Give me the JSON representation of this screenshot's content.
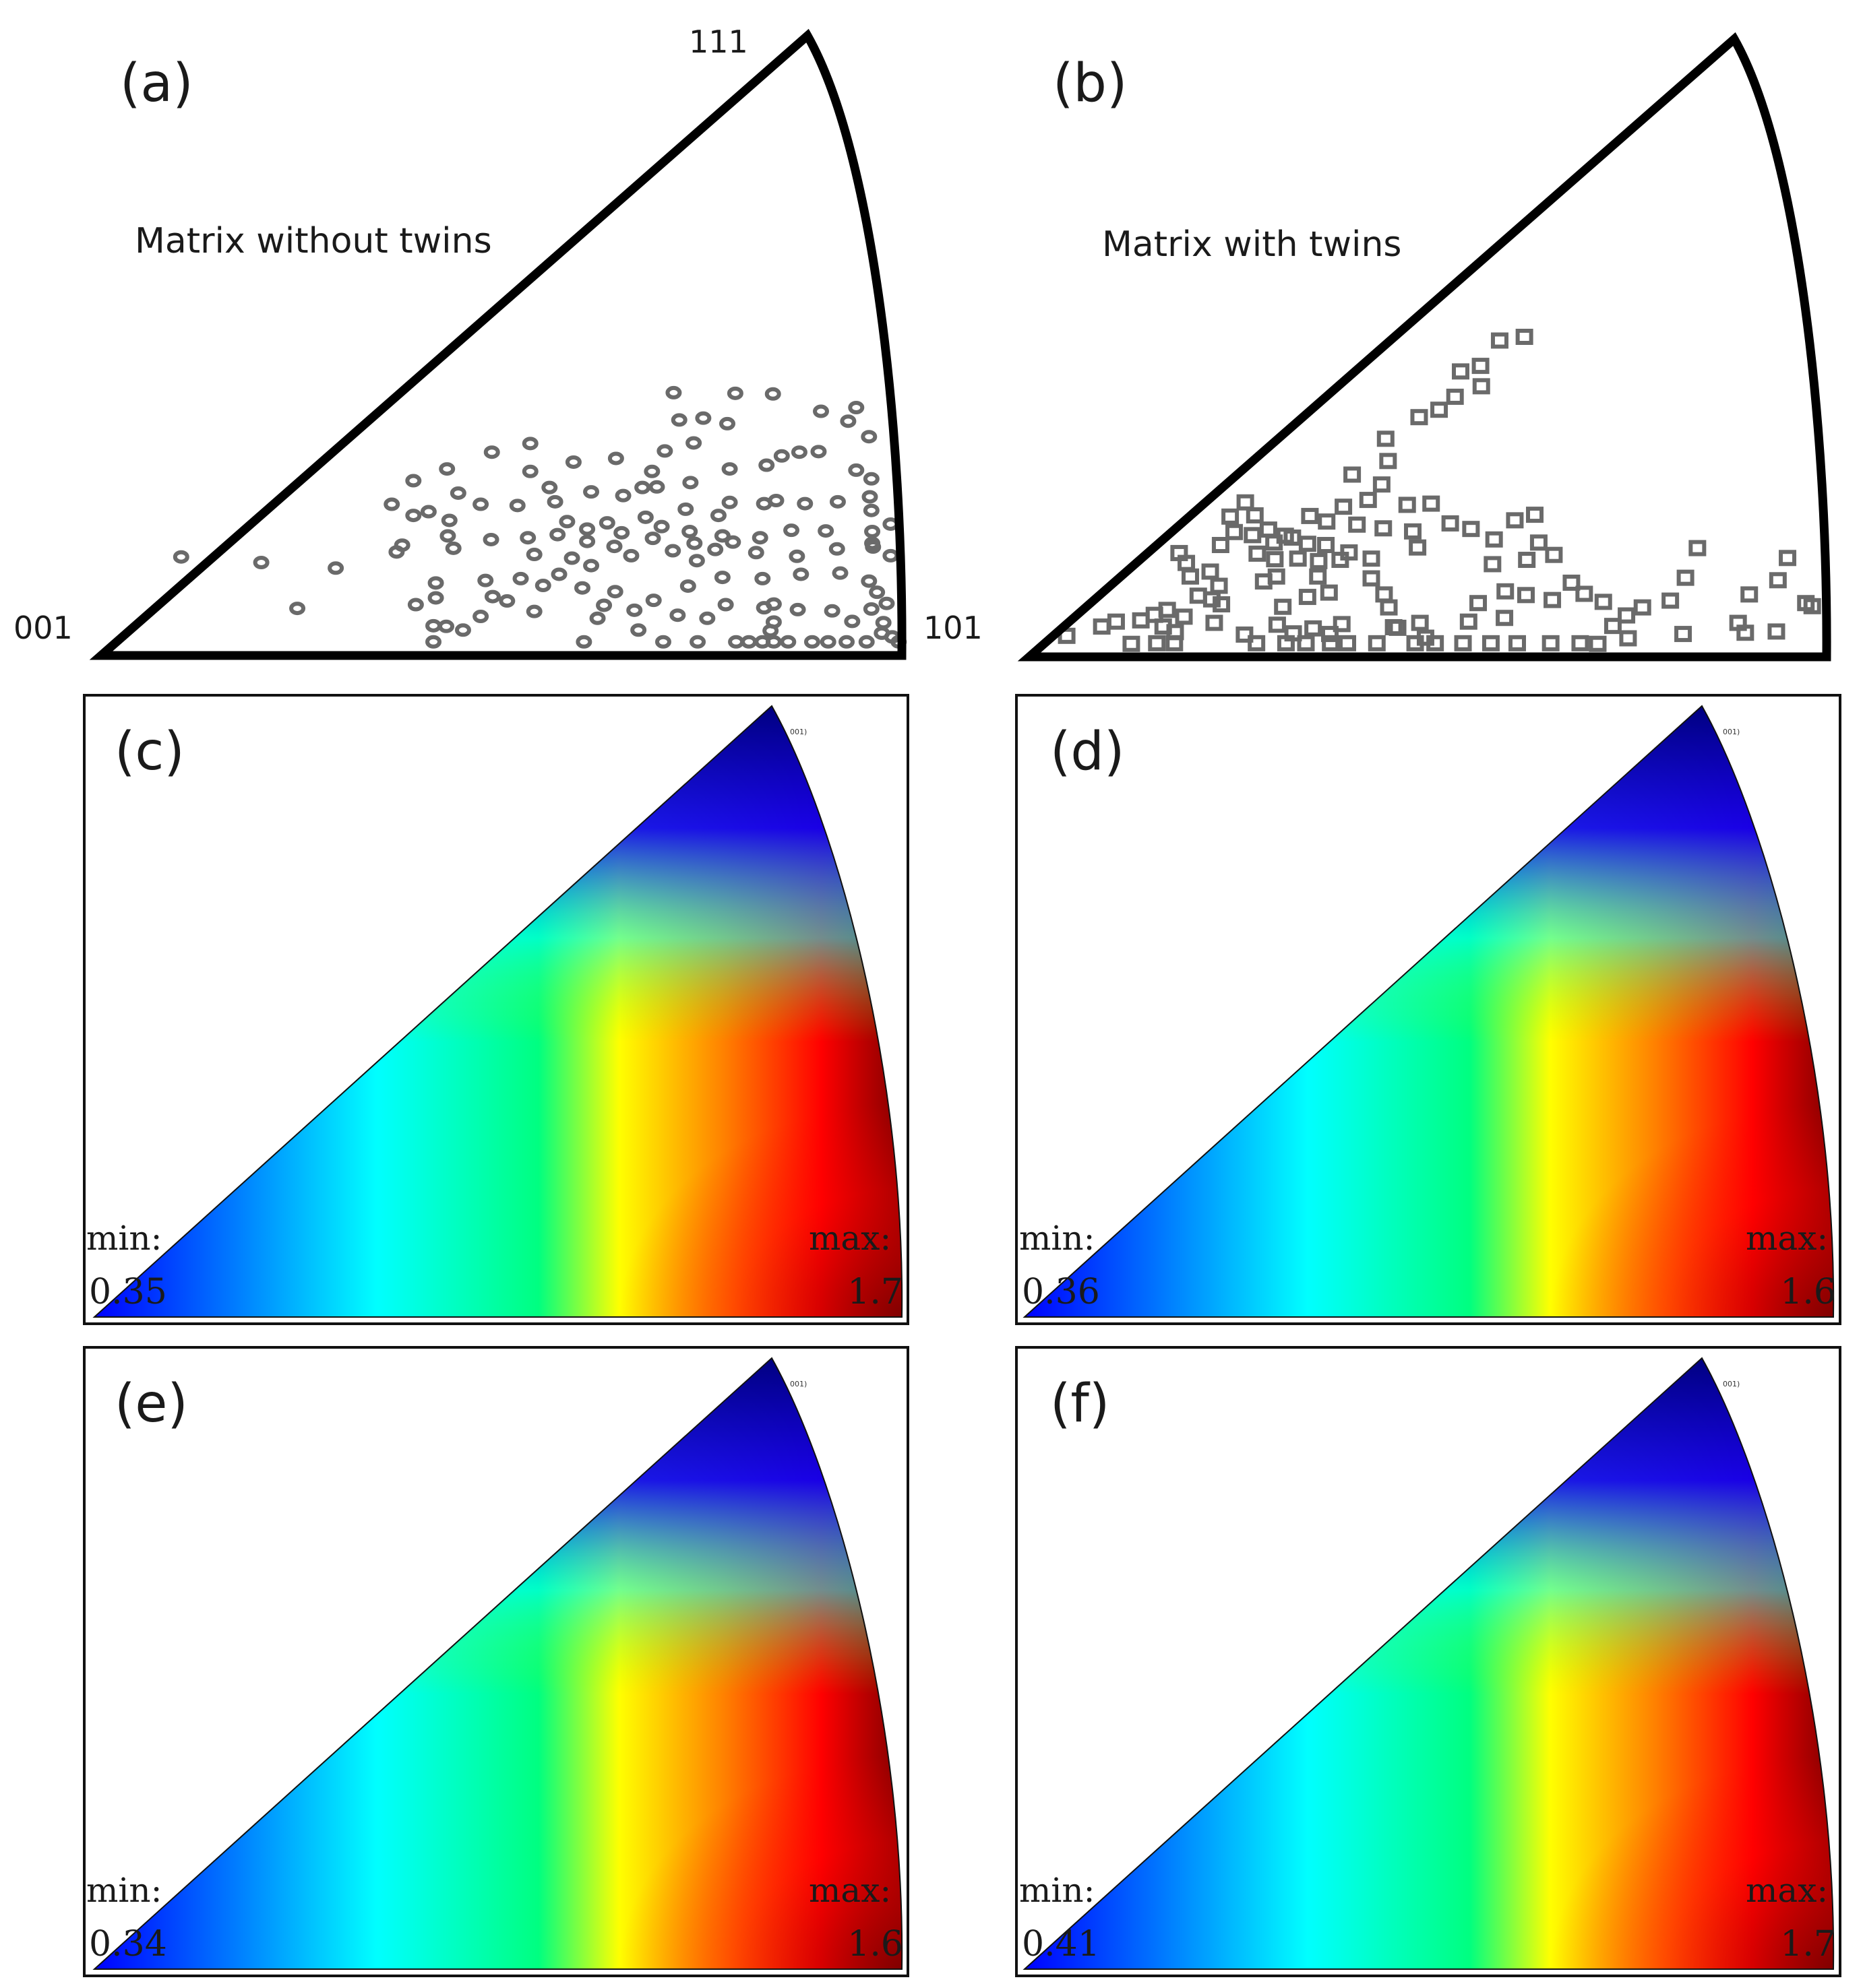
{
  "chart_data": [
    {
      "panel": "(a)",
      "type": "scatter",
      "title": "Matrix without twins",
      "vertices": [
        "001",
        "111",
        "101"
      ],
      "marker": "circle",
      "points": [
        [
          0.84,
          0.054
        ],
        [
          0.84,
          0.022
        ],
        [
          0.84,
          0.083
        ],
        [
          0.744,
          0.153
        ],
        [
          0.771,
          0.226
        ],
        [
          0.676,
          0.271
        ],
        [
          0.688,
          0.297
        ],
        [
          0.752,
          0.383
        ],
        [
          0.782,
          0.374
        ],
        [
          0.722,
          0.38
        ],
        [
          0.715,
          0.424
        ],
        [
          0.792,
          0.423
        ],
        [
          0.839,
          0.422
        ],
        [
          0.899,
          0.394
        ],
        [
          0.896,
          0.329
        ],
        [
          0.943,
          0.4
        ],
        [
          0.933,
          0.378
        ],
        [
          0.959,
          0.353
        ],
        [
          0.85,
          0.322
        ],
        [
          0.872,
          0.328
        ],
        [
          0.831,
          0.307
        ],
        [
          0.785,
          0.301
        ],
        [
          0.843,
          0.25
        ],
        [
          0.943,
          0.299
        ],
        [
          0.962,
          0.285
        ],
        [
          0.96,
          0.256
        ],
        [
          0.962,
          0.234
        ],
        [
          0.986,
          0.212
        ],
        [
          0.963,
          0.2
        ],
        [
          0.964,
          0.175
        ],
        [
          0.986,
          0.161
        ],
        [
          0.959,
          0.12
        ],
        [
          0.969,
          0.102
        ],
        [
          0.981,
          0.084
        ],
        [
          0.996,
          0.022
        ],
        [
          0.975,
          0.036
        ],
        [
          0.931,
          0.022
        ],
        [
          0.888,
          0.022
        ],
        [
          0.836,
          0.04
        ],
        [
          0.826,
          0.022
        ],
        [
          0.809,
          0.022
        ],
        [
          0.793,
          0.022
        ],
        [
          0.745,
          0.022
        ],
        [
          0.702,
          0.022
        ],
        [
          0.671,
          0.041
        ],
        [
          0.62,
          0.06
        ],
        [
          0.603,
          0.022
        ],
        [
          0.541,
          0.071
        ],
        [
          0.489,
          0.095
        ],
        [
          0.418,
          0.117
        ],
        [
          0.393,
          0.082
        ],
        [
          0.415,
          0.022
        ],
        [
          0.431,
          0.047
        ],
        [
          0.452,
          0.041
        ],
        [
          0.474,
          0.063
        ],
        [
          0.418,
          0.093
        ],
        [
          0.415,
          0.048
        ],
        [
          0.293,
          0.141
        ],
        [
          0.245,
          0.076
        ],
        [
          0.2,
          0.15
        ],
        [
          0.1,
          0.159
        ],
        [
          0.369,
          0.167
        ],
        [
          0.48,
          0.121
        ],
        [
          0.524,
          0.124
        ],
        [
          0.572,
          0.131
        ],
        [
          0.612,
          0.145
        ],
        [
          0.662,
          0.161
        ],
        [
          0.714,
          0.169
        ],
        [
          0.767,
          0.171
        ],
        [
          0.818,
          0.166
        ],
        [
          0.869,
          0.16
        ],
        [
          0.919,
          0.172
        ],
        [
          0.963,
          0.181
        ],
        [
          0.923,
          0.133
        ],
        [
          0.874,
          0.131
        ],
        [
          0.826,
          0.124
        ],
        [
          0.776,
          0.126
        ],
        [
          0.733,
          0.112
        ],
        [
          0.69,
          0.089
        ],
        [
          0.642,
          0.103
        ],
        [
          0.601,
          0.109
        ],
        [
          0.552,
          0.113
        ],
        [
          0.507,
          0.088
        ],
        [
          0.582,
          0.216
        ],
        [
          0.632,
          0.214
        ],
        [
          0.68,
          0.223
        ],
        [
          0.73,
          0.236
        ],
        [
          0.785,
          0.247
        ],
        [
          0.828,
          0.245
        ],
        [
          0.879,
          0.245
        ],
        [
          0.92,
          0.248
        ],
        [
          0.56,
          0.271
        ],
        [
          0.612,
          0.264
        ],
        [
          0.652,
          0.258
        ],
        [
          0.694,
          0.272
        ],
        [
          0.736,
          0.279
        ],
        [
          0.536,
          0.297
        ],
        [
          0.59,
          0.312
        ],
        [
          0.643,
          0.318
        ],
        [
          0.704,
          0.33
        ],
        [
          0.74,
          0.343
        ],
        [
          0.567,
          0.248
        ],
        [
          0.52,
          0.242
        ],
        [
          0.474,
          0.244
        ],
        [
          0.446,
          0.262
        ],
        [
          0.432,
          0.301
        ],
        [
          0.488,
          0.328
        ],
        [
          0.536,
          0.342
        ],
        [
          0.39,
          0.282
        ],
        [
          0.363,
          0.244
        ],
        [
          0.39,
          0.226
        ],
        [
          0.409,
          0.232
        ],
        [
          0.435,
          0.218
        ],
        [
          0.433,
          0.193
        ],
        [
          0.487,
          0.187
        ],
        [
          0.44,
          0.173
        ],
        [
          0.376,
          0.178
        ],
        [
          0.533,
          0.19
        ],
        [
          0.57,
          0.195
        ],
        [
          0.607,
          0.204
        ],
        [
          0.65,
          0.198
        ],
        [
          0.7,
          0.208
        ],
        [
          0.735,
          0.2
        ],
        [
          0.776,
          0.193
        ],
        [
          0.823,
          0.19
        ],
        [
          0.862,
          0.202
        ],
        [
          0.905,
          0.201
        ],
        [
          0.607,
          0.184
        ],
        [
          0.641,
          0.176
        ],
        [
          0.689,
          0.189
        ],
        [
          0.741,
          0.181
        ],
        [
          0.789,
          0.183
        ],
        [
          0.541,
          0.163
        ],
        [
          0.588,
          0.157
        ],
        [
          0.628,
          0.081
        ],
        [
          0.666,
          0.073
        ],
        [
          0.72,
          0.065
        ],
        [
          0.757,
          0.06
        ],
        [
          0.78,
          0.082
        ],
        [
          0.828,
          0.077
        ],
        [
          0.87,
          0.074
        ],
        [
          0.913,
          0.072
        ],
        [
          0.938,
          0.055
        ],
        [
          0.908,
          0.022
        ],
        [
          0.858,
          0.022
        ],
        [
          0.956,
          0.022
        ],
        [
          0.988,
          0.03
        ],
        [
          0.977,
          0.053
        ],
        [
          0.962,
          0.075
        ]
      ]
    },
    {
      "panel": "(b)",
      "type": "scatter",
      "title": "Matrix with twins",
      "vertices": [
        "001",
        "111",
        "101"
      ],
      "marker": "square",
      "points": [
        [
          0.047,
          0.034
        ],
        [
          0.091,
          0.049
        ],
        [
          0.109,
          0.057
        ],
        [
          0.128,
          0.021
        ],
        [
          0.16,
          0.022
        ],
        [
          0.168,
          0.049
        ],
        [
          0.173,
          0.076
        ],
        [
          0.182,
          0.022
        ],
        [
          0.183,
          0.04
        ],
        [
          0.194,
          0.065
        ],
        [
          0.202,
          0.13
        ],
        [
          0.188,
          0.168
        ],
        [
          0.238,
          0.115
        ],
        [
          0.227,
          0.138
        ],
        [
          0.241,
          0.085
        ],
        [
          0.229,
          0.093
        ],
        [
          0.24,
          0.181
        ],
        [
          0.252,
          0.227
        ],
        [
          0.257,
          0.202
        ],
        [
          0.271,
          0.25
        ],
        [
          0.28,
          0.197
        ],
        [
          0.286,
          0.167
        ],
        [
          0.283,
          0.229
        ],
        [
          0.307,
          0.185
        ],
        [
          0.3,
          0.206
        ],
        [
          0.308,
          0.158
        ],
        [
          0.294,
          0.122
        ],
        [
          0.31,
          0.13
        ],
        [
          0.318,
          0.081
        ],
        [
          0.311,
          0.052
        ],
        [
          0.27,
          0.036
        ],
        [
          0.285,
          0.022
        ],
        [
          0.322,
          0.022
        ],
        [
          0.331,
          0.038
        ],
        [
          0.347,
          0.022
        ],
        [
          0.356,
          0.046
        ],
        [
          0.377,
          0.037
        ],
        [
          0.392,
          0.053
        ],
        [
          0.349,
          0.097
        ],
        [
          0.376,
          0.104
        ],
        [
          0.362,
          0.13
        ],
        [
          0.349,
          0.183
        ],
        [
          0.33,
          0.193
        ],
        [
          0.372,
          0.181
        ],
        [
          0.373,
          0.219
        ],
        [
          0.401,
          0.169
        ],
        [
          0.411,
          0.214
        ],
        [
          0.425,
          0.254
        ],
        [
          0.442,
          0.279
        ],
        [
          0.45,
          0.317
        ],
        [
          0.39,
          0.157
        ],
        [
          0.363,
          0.155
        ],
        [
          0.337,
          0.159
        ],
        [
          0.321,
          0.196
        ],
        [
          0.352,
          0.228
        ],
        [
          0.394,
          0.243
        ],
        [
          0.405,
          0.295
        ],
        [
          0.447,
          0.353
        ],
        [
          0.489,
          0.388
        ],
        [
          0.514,
          0.4
        ],
        [
          0.534,
          0.421
        ],
        [
          0.541,
          0.462
        ],
        [
          0.566,
          0.471
        ],
        [
          0.567,
          0.438
        ],
        [
          0.59,
          0.512
        ],
        [
          0.621,
          0.518
        ],
        [
          0.429,
          0.127
        ],
        [
          0.429,
          0.159
        ],
        [
          0.444,
          0.208
        ],
        [
          0.474,
          0.246
        ],
        [
          0.504,
          0.248
        ],
        [
          0.481,
          0.203
        ],
        [
          0.487,
          0.177
        ],
        [
          0.528,
          0.216
        ],
        [
          0.554,
          0.207
        ],
        [
          0.583,
          0.19
        ],
        [
          0.581,
          0.15
        ],
        [
          0.609,
          0.221
        ],
        [
          0.634,
          0.23
        ],
        [
          0.639,
          0.185
        ],
        [
          0.658,
          0.165
        ],
        [
          0.624,
          0.157
        ],
        [
          0.597,
          0.106
        ],
        [
          0.563,
          0.087
        ],
        [
          0.49,
          0.055
        ],
        [
          0.457,
          0.048
        ],
        [
          0.445,
          0.101
        ],
        [
          0.451,
          0.08
        ],
        [
          0.462,
          0.047
        ],
        [
          0.497,
          0.031
        ],
        [
          0.551,
          0.057
        ],
        [
          0.596,
          0.063
        ],
        [
          0.623,
          0.1
        ],
        [
          0.656,
          0.092
        ],
        [
          0.68,
          0.12
        ],
        [
          0.696,
          0.102
        ],
        [
          0.72,
          0.089
        ],
        [
          0.749,
          0.067
        ],
        [
          0.769,
          0.08
        ],
        [
          0.804,
          0.091
        ],
        [
          0.823,
          0.128
        ],
        [
          0.838,
          0.176
        ],
        [
          0.889,
          0.055
        ],
        [
          0.898,
          0.039
        ],
        [
          0.903,
          0.101
        ],
        [
          0.939,
          0.124
        ],
        [
          0.951,
          0.16
        ],
        [
          0.974,
          0.087
        ],
        [
          0.982,
          0.082
        ],
        [
          0.937,
          0.041
        ],
        [
          0.82,
          0.037
        ],
        [
          0.751,
          0.03
        ],
        [
          0.732,
          0.05
        ],
        [
          0.713,
          0.021
        ],
        [
          0.691,
          0.022
        ],
        [
          0.654,
          0.022
        ],
        [
          0.612,
          0.022
        ],
        [
          0.579,
          0.022
        ],
        [
          0.544,
          0.022
        ],
        [
          0.509,
          0.022
        ],
        [
          0.484,
          0.022
        ],
        [
          0.436,
          0.022
        ],
        [
          0.399,
          0.022
        ],
        [
          0.378,
          0.022
        ],
        [
          0.232,
          0.055
        ],
        [
          0.212,
          0.099
        ],
        [
          0.197,
          0.152
        ],
        [
          0.157,
          0.068
        ],
        [
          0.14,
          0.059
        ]
      ]
    },
    {
      "panel": "(c)",
      "type": "heatmap",
      "min": "0.35",
      "max": "1.7",
      "corner_tag": "001)"
    },
    {
      "panel": "(d)",
      "type": "heatmap",
      "min": "0.36",
      "max": "1.6",
      "corner_tag": "001)"
    },
    {
      "panel": "(e)",
      "type": "heatmap",
      "min": "0.34",
      "max": "1.6",
      "corner_tag": "001)"
    },
    {
      "panel": "(f)",
      "type": "heatmap",
      "min": "0.41",
      "max": "1.7",
      "corner_tag": "001)"
    }
  ],
  "labels": {
    "min_word": "min:",
    "max_word": "max:"
  },
  "colors": {
    "marker": "#6a6a6a",
    "outline": "#000000",
    "colormap": [
      "#000080",
      "#0000ff",
      "#0080ff",
      "#00ffff",
      "#00ff80",
      "#80ff00",
      "#ffff00",
      "#ff8000",
      "#ff0000",
      "#800000"
    ]
  }
}
